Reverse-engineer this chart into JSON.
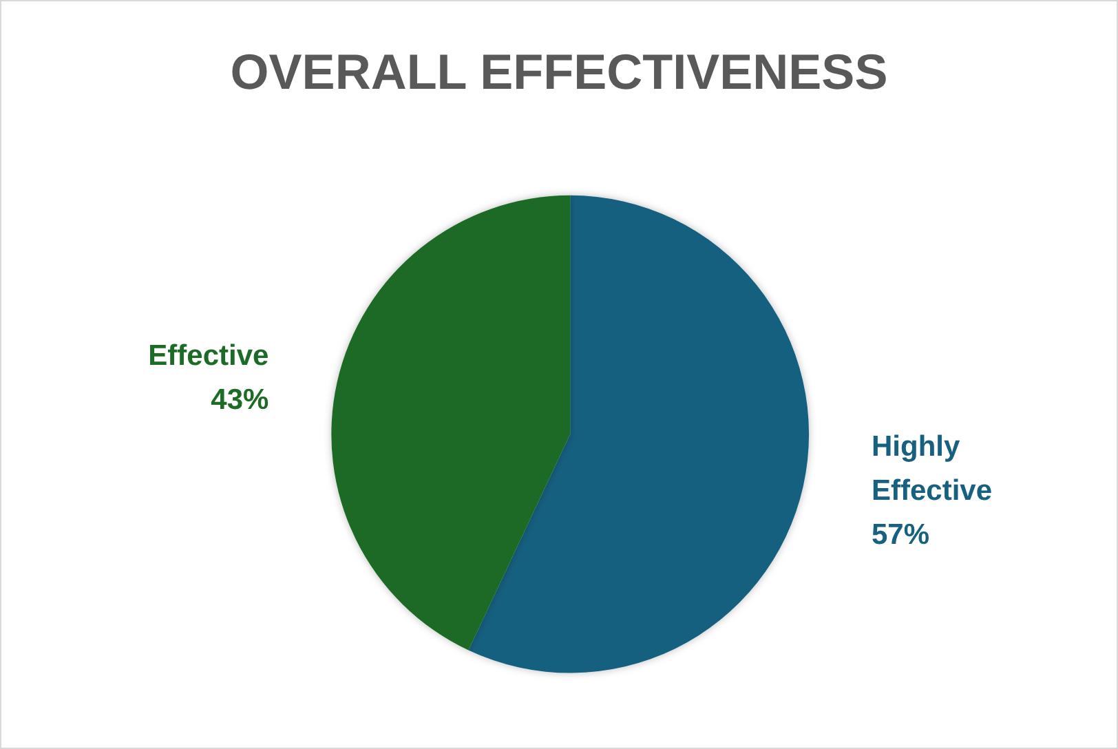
{
  "chart_data": {
    "type": "pie",
    "title": "OVERALL EFFECTIVENESS",
    "categories": [
      "Highly Effective",
      "Effective"
    ],
    "values": [
      57,
      43
    ],
    "colors": [
      "#17607f",
      "#1c6b26"
    ],
    "value_labels": [
      "57%",
      "43%"
    ],
    "legend": false
  }
}
